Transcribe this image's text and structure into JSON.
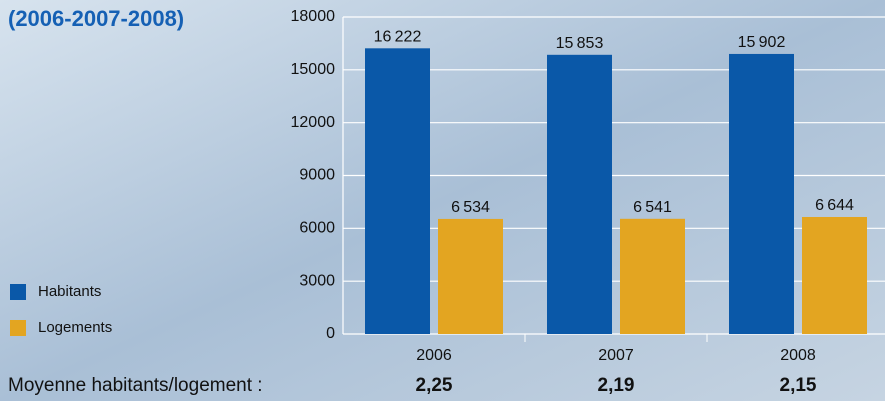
{
  "chart_data": {
    "type": "bar",
    "title": "(2006-2007-2008)",
    "categories": [
      "2006",
      "2007",
      "2008"
    ],
    "series": [
      {
        "name": "Habitants",
        "color": "#0a58a8",
        "values": [
          16222,
          15853,
          15902
        ],
        "value_labels": [
          "16 222",
          "15 853",
          "15 902"
        ]
      },
      {
        "name": "Logements",
        "color": "#e3a521",
        "values": [
          6534,
          6541,
          6644
        ],
        "value_labels": [
          "6 534",
          "6 541",
          "6 644"
        ]
      }
    ],
    "ylim": [
      0,
      18000
    ],
    "yticks": [
      0,
      3000,
      6000,
      9000,
      12000,
      15000,
      18000
    ],
    "grid": true,
    "footer_label": "Moyenne habitants/logement :",
    "footer_values": [
      "2,25",
      "2,19",
      "2,15"
    ]
  }
}
